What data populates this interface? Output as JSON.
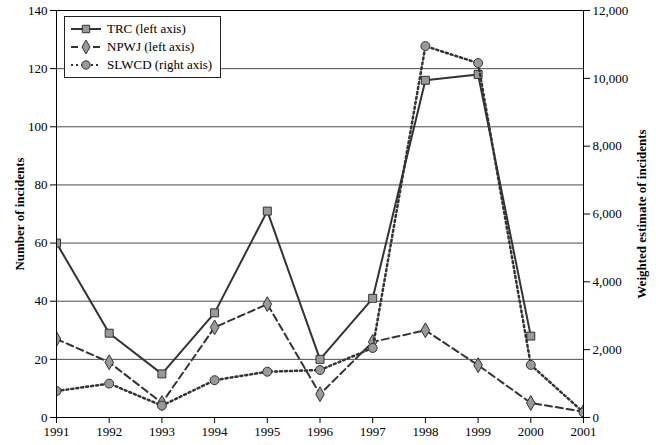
{
  "chart_data": {
    "type": "line",
    "x": [
      1991,
      1992,
      1993,
      1994,
      1995,
      1996,
      1997,
      1998,
      1999,
      2000,
      2001
    ],
    "xlim": [
      1991,
      2001
    ],
    "xticks": [
      1991,
      1992,
      1993,
      1994,
      1995,
      1996,
      1997,
      1998,
      1999,
      2000,
      2001
    ],
    "ylim": [
      0,
      140
    ],
    "yticks": [
      0,
      20,
      40,
      60,
      80,
      100,
      120,
      140
    ],
    "ylabel": "Number of incidents",
    "y2lim": [
      0,
      12000
    ],
    "y2ticks": [
      {
        "value": 0,
        "label": "0"
      },
      {
        "value": 2000,
        "label": "2,000"
      },
      {
        "value": 4000,
        "label": "4,000"
      },
      {
        "value": 6000,
        "label": "6,000"
      },
      {
        "value": 8000,
        "label": "8,000"
      },
      {
        "value": 10000,
        "label": "10,000"
      },
      {
        "value": 12000,
        "label": "12,000"
      }
    ],
    "y2label": "Weighted estimate of incidents",
    "grid": true,
    "legend": "top-left",
    "series": [
      {
        "name": "TRC (left axis)",
        "color": "#333333",
        "marker": "square",
        "line_style": "solid",
        "values": [
          60,
          29,
          15,
          36,
          71,
          20,
          41,
          116,
          118,
          28,
          null
        ]
      },
      {
        "name": "NPWJ (left axis)",
        "color": "#333333",
        "marker": "diamond",
        "line_style": "dashed",
        "values": [
          27,
          19,
          5,
          31,
          39,
          8,
          26,
          30,
          18,
          5,
          2
        ]
      },
      {
        "name": "SLWCD (right axis)",
        "color": "#333333",
        "marker": "circle",
        "line_style": "dotted",
        "axis": "y2",
        "values": [
          780,
          1000,
          350,
          1100,
          1350,
          1400,
          2050,
          10950,
          10450,
          1550,
          150
        ]
      }
    ]
  }
}
